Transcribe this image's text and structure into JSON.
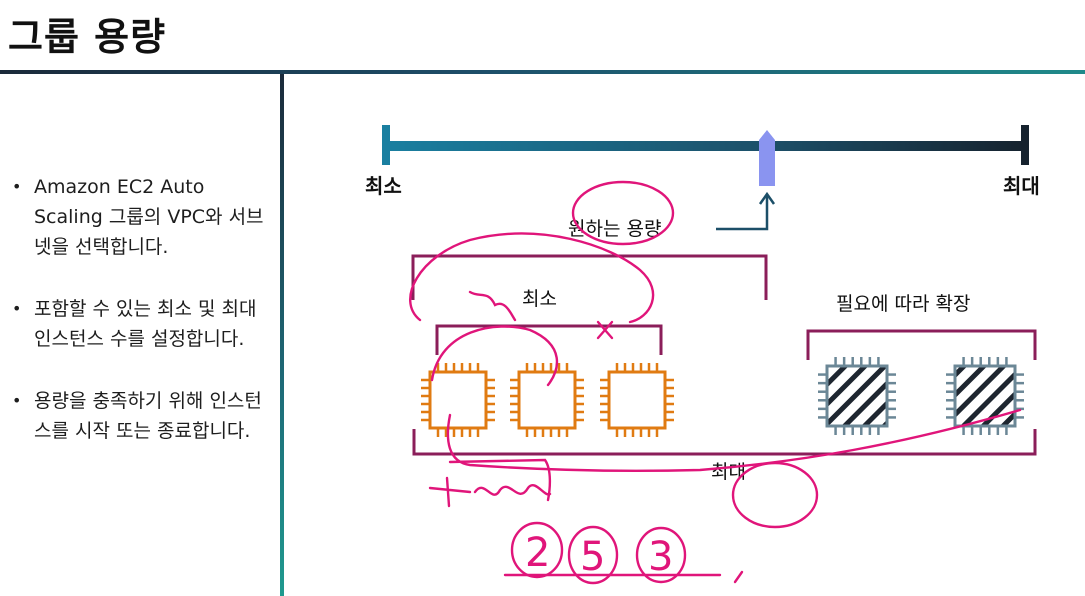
{
  "title": "그룹 용량",
  "bullets": [
    "Amazon EC2 Auto Scaling 그룹의 VPC와 서브넷을 선택합니다.",
    "포함할 수 있는 최소 및 최대 인스턴스 수를 설정합니다.",
    "용량을 충족하기 위해 인스턴스를 시작 또는 종료합니다."
  ],
  "diagram": {
    "scale_min_label": "최소",
    "scale_max_label": "최대",
    "desired_label": "원하는 용량",
    "min_bracket_label": "최소",
    "scale_out_label": "필요에 따라 확장",
    "max_bracket_label": "최대",
    "active_instance_count": 3,
    "optional_instance_count": 2
  },
  "colors": {
    "title_rule": "#1d4f6a",
    "scale_bar": "#1f6f8f",
    "desired_marker": "#8a94f0",
    "bracket": "#8b1e5a",
    "instance_active": "#e07b12",
    "instance_optional": "#6b8796",
    "handwriting": "#e0157a"
  },
  "annotations": {
    "handwritten_ratio": [
      "2",
      "5",
      "3"
    ]
  }
}
